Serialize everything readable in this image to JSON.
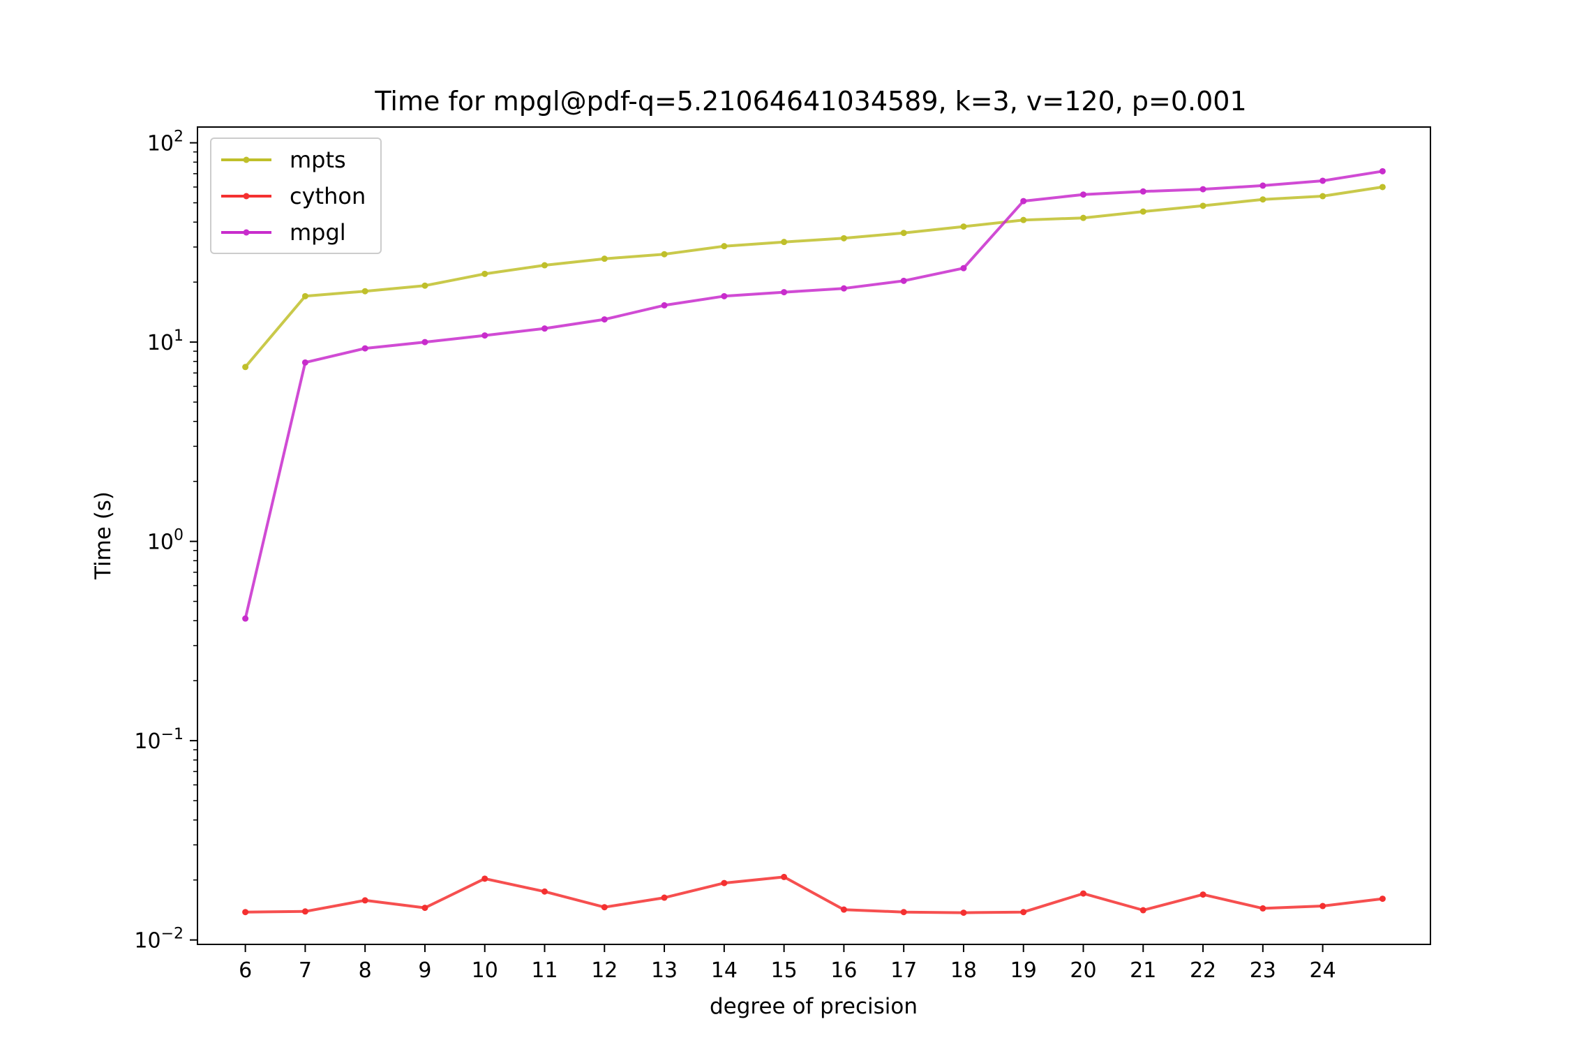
{
  "chart_data": {
    "type": "line",
    "title": "Time for mpgl@pdf-q=5.21064641034589, k=3, v=120, p=0.001",
    "xlabel": "degree of precision",
    "ylabel": "Time (s)",
    "yscale": "log",
    "ylim": [
      0.0095,
      120
    ],
    "xlim": [
      5.2,
      25.8
    ],
    "x": [
      6,
      7,
      8,
      9,
      10,
      11,
      12,
      13,
      14,
      15,
      16,
      17,
      18,
      19,
      20,
      21,
      22,
      23,
      24,
      25
    ],
    "xticks": [
      6,
      7,
      8,
      9,
      10,
      11,
      12,
      13,
      14,
      15,
      16,
      17,
      18,
      19,
      20,
      21,
      22,
      23,
      24
    ],
    "yticks": [
      {
        "value": 0.01,
        "base": "10",
        "exp": "−2"
      },
      {
        "value": 0.1,
        "base": "10",
        "exp": "−1"
      },
      {
        "value": 1,
        "base": "10",
        "exp": "0"
      },
      {
        "value": 10,
        "base": "10",
        "exp": "1"
      },
      {
        "value": 100,
        "base": "10",
        "exp": "2"
      }
    ],
    "grid": false,
    "legend_position": "top-left",
    "series": [
      {
        "name": "mpts",
        "color": "#bfbf2a",
        "values": [
          7.5,
          17.0,
          18.0,
          19.2,
          22.0,
          24.3,
          26.2,
          27.6,
          30.3,
          31.8,
          33.2,
          35.3,
          38.0,
          41.0,
          42.0,
          45.2,
          48.3,
          52.0,
          54.0,
          60.0
        ]
      },
      {
        "name": "cython",
        "color": "#f43030",
        "values": [
          0.0138,
          0.0139,
          0.0158,
          0.0145,
          0.0203,
          0.0175,
          0.0146,
          0.0163,
          0.0193,
          0.0207,
          0.0142,
          0.0138,
          0.0137,
          0.0138,
          0.0171,
          0.0141,
          0.0169,
          0.0144,
          0.0148,
          0.0161
        ]
      },
      {
        "name": "mpgl",
        "color": "#c82ccc",
        "values": [
          0.41,
          7.9,
          9.3,
          10.0,
          10.8,
          11.7,
          13.0,
          15.3,
          17.0,
          17.8,
          18.6,
          20.3,
          23.5,
          51.0,
          55.0,
          57.0,
          58.5,
          61.0,
          64.5,
          72.0
        ]
      }
    ]
  }
}
